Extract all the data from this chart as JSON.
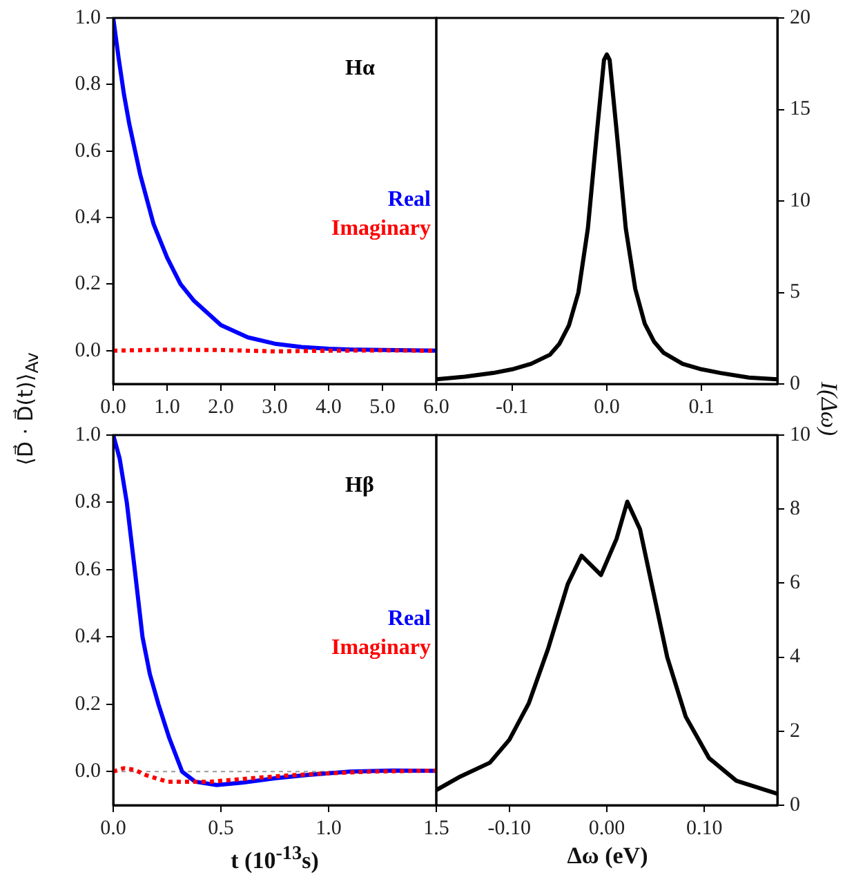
{
  "chart_data": [
    {
      "type": "line",
      "ylabel": "⟨D⃗ · D⃗(t)⟩$_{Av}$",
      "annotations": [
        "Hα"
      ],
      "xlim": [
        0,
        6
      ],
      "xticks": [
        {
          "value": 0,
          "label": "0.0"
        },
        {
          "value": 1,
          "label": "1.0"
        },
        {
          "value": 2,
          "label": "2.0"
        },
        {
          "value": 3,
          "label": "3.0"
        },
        {
          "value": 4,
          "label": "4.0"
        },
        {
          "value": 5,
          "label": "5.0"
        },
        {
          "value": 6,
          "label": "6.0"
        }
      ],
      "ylim": [
        -0.1,
        1
      ],
      "yticks": [
        {
          "value": 0,
          "label": "0.0"
        },
        {
          "value": 0.2,
          "label": "0.2"
        },
        {
          "value": 0.4,
          "label": "0.4"
        },
        {
          "value": 0.6,
          "label": "0.6"
        },
        {
          "value": 0.8,
          "label": "0.8"
        },
        {
          "value": 1,
          "label": "1.0"
        }
      ],
      "grid": false,
      "legend": "right",
      "ref_lines": [
        {
          "axis": "y",
          "value": 0,
          "color": "#999999",
          "line_style": "dotted"
        }
      ],
      "series": [
        {
          "name": "Real",
          "color": "#0000ff",
          "line_style": "solid",
          "x": [
            0,
            0.1,
            0.2,
            0.3,
            0.5,
            0.75,
            1,
            1.25,
            1.5,
            2,
            2.5,
            3,
            3.5,
            4,
            4.5,
            5,
            6
          ],
          "values": [
            1,
            0.88,
            0.77,
            0.68,
            0.53,
            0.38,
            0.28,
            0.2,
            0.15,
            0.077,
            0.04,
            0.021,
            0.011,
            0.006,
            0.003,
            0.002,
            0
          ]
        },
        {
          "name": "Imaginary",
          "color": "#ff0000",
          "line_style": "dotted",
          "x": [
            0,
            1,
            2,
            3,
            4,
            5,
            6
          ],
          "values": [
            0,
            0.003,
            0.002,
            -0.002,
            0,
            0.001,
            0
          ]
        }
      ]
    },
    {
      "type": "line",
      "y2label": "I(Δω)",
      "xlim": [
        -0.18,
        0.18
      ],
      "xticks": [
        {
          "value": -0.1,
          "label": "-0.1"
        },
        {
          "value": 0,
          "label": "0.0"
        },
        {
          "value": 0.1,
          "label": "0.1"
        }
      ],
      "y2lim": [
        0,
        20
      ],
      "y2ticks": [
        0,
        5,
        10,
        15,
        20
      ],
      "grid": false,
      "series": [
        {
          "color": "#000000",
          "axis": "y2",
          "x": [
            -0.18,
            -0.15,
            -0.12,
            -0.1,
            -0.08,
            -0.06,
            -0.05,
            -0.04,
            -0.03,
            -0.02,
            -0.01,
            -0.003,
            0,
            0.003,
            0.01,
            0.02,
            0.03,
            0.04,
            0.05,
            0.06,
            0.08,
            0.1,
            0.12,
            0.15,
            0.18
          ],
          "values": [
            0.25,
            0.4,
            0.6,
            0.8,
            1.1,
            1.6,
            2.2,
            3.2,
            5,
            8.5,
            14,
            17.7,
            18,
            17.7,
            14,
            8.5,
            5.2,
            3.3,
            2.3,
            1.7,
            1.1,
            0.8,
            0.6,
            0.35,
            0.25
          ]
        }
      ]
    },
    {
      "type": "line",
      "xlabel": "t (10$^{-13}$s)",
      "annotations": [
        "Hβ"
      ],
      "xlim": [
        0,
        1.5
      ],
      "xticks": [
        {
          "value": 0,
          "label": "0.0"
        },
        {
          "value": 0.5,
          "label": "0.5"
        },
        {
          "value": 1,
          "label": "1.0"
        },
        {
          "value": 1.5,
          "label": "1.5"
        }
      ],
      "ylim": [
        -0.1,
        1
      ],
      "yticks": [
        {
          "value": 0,
          "label": "0.0"
        },
        {
          "value": 0.2,
          "label": "0.2"
        },
        {
          "value": 0.4,
          "label": "0.4"
        },
        {
          "value": 0.6,
          "label": "0.6"
        },
        {
          "value": 0.8,
          "label": "0.8"
        },
        {
          "value": 1,
          "label": "1.0"
        }
      ],
      "grid": false,
      "legend": "right",
      "ref_lines": [
        {
          "axis": "y",
          "value": 0,
          "color": "#999999",
          "line_style": "dotted"
        }
      ],
      "series": [
        {
          "name": "Real",
          "color": "#0000ff",
          "line_style": "solid",
          "x": [
            0,
            0.03,
            0.063,
            0.1,
            0.136,
            0.17,
            0.21,
            0.26,
            0.32,
            0.38,
            0.48,
            0.6,
            0.75,
            0.9,
            1.1,
            1.3,
            1.5
          ],
          "values": [
            1,
            0.93,
            0.8,
            0.6,
            0.4,
            0.29,
            0.2,
            0.1,
            0,
            -0.03,
            -0.04,
            -0.033,
            -0.02,
            -0.01,
            0,
            0.003,
            0.002
          ]
        },
        {
          "name": "Imaginary",
          "color": "#ff0000",
          "line_style": "dotted",
          "x": [
            0,
            0.05,
            0.1,
            0.15,
            0.2,
            0.25,
            0.35,
            0.45,
            0.6,
            0.8,
            1,
            1.2,
            1.5
          ],
          "values": [
            0,
            0.01,
            0.005,
            -0.01,
            -0.02,
            -0.03,
            -0.03,
            -0.03,
            -0.022,
            -0.012,
            -0.005,
            0,
            0.003
          ]
        }
      ]
    },
    {
      "type": "line",
      "xlabel": "Δω (eV)",
      "xlim": [
        -0.175,
        0.175
      ],
      "xticks": [
        {
          "value": -0.1,
          "label": "-0.10"
        },
        {
          "value": 0,
          "label": "0.00"
        },
        {
          "value": 0.1,
          "label": "0.10"
        }
      ],
      "y2lim": [
        0,
        10
      ],
      "y2ticks": [
        0,
        2,
        4,
        6,
        8,
        10
      ],
      "grid": false,
      "series": [
        {
          "color": "#000000",
          "axis": "y2",
          "x": [
            -0.175,
            -0.15,
            -0.12,
            -0.1,
            -0.08,
            -0.06,
            -0.04,
            -0.026,
            -0.006,
            0.01,
            0.021,
            0.034,
            0.048,
            0.062,
            0.081,
            0.105,
            0.133,
            0.175
          ],
          "values": [
            0.41,
            0.78,
            1.15,
            1.77,
            2.76,
            4.25,
            5.98,
            6.74,
            6.22,
            7.2,
            8.2,
            7.46,
            5.73,
            4,
            2.39,
            1.27,
            0.66,
            0.31
          ]
        }
      ]
    }
  ]
}
